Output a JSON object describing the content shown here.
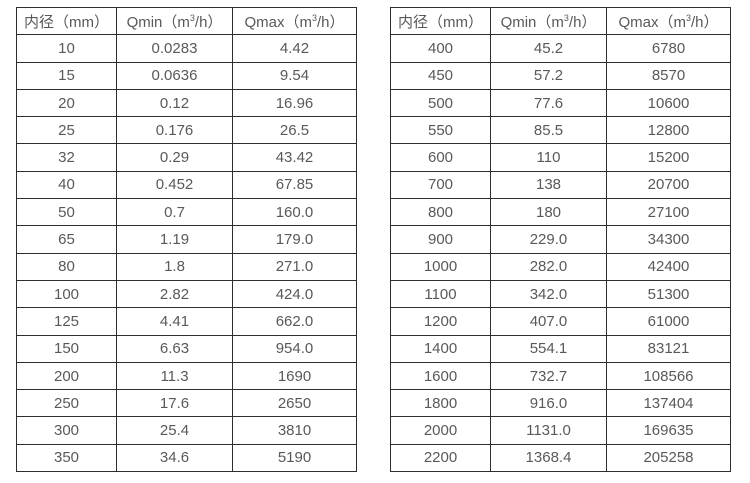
{
  "colors": {
    "background": "#ffffff",
    "border": "#2e2e2e",
    "text": "#595959"
  },
  "tables": [
    {
      "name": "flow-table-small-diameters",
      "headers": [
        {
          "text": "内径（mm）"
        },
        {
          "pre": "Qmin（m",
          "sup": "3",
          "post": "/h）"
        },
        {
          "pre": "Qmax（m",
          "sup": "3",
          "post": "/h）"
        }
      ],
      "rows": [
        [
          "10",
          "0.0283",
          "4.42"
        ],
        [
          "15",
          "0.0636",
          "9.54"
        ],
        [
          "20",
          "0.12",
          "16.96"
        ],
        [
          "25",
          "0.176",
          "26.5"
        ],
        [
          "32",
          "0.29",
          "43.42"
        ],
        [
          "40",
          "0.452",
          "67.85"
        ],
        [
          "50",
          "0.7",
          "160.0"
        ],
        [
          "65",
          "1.19",
          "179.0"
        ],
        [
          "80",
          "1.8",
          "271.0"
        ],
        [
          "100",
          "2.82",
          "424.0"
        ],
        [
          "125",
          "4.41",
          "662.0"
        ],
        [
          "150",
          "6.63",
          "954.0"
        ],
        [
          "200",
          "11.3",
          "1690"
        ],
        [
          "250",
          "17.6",
          "2650"
        ],
        [
          "300",
          "25.4",
          "3810"
        ],
        [
          "350",
          "34.6",
          "5190"
        ]
      ]
    },
    {
      "name": "flow-table-large-diameters",
      "headers": [
        {
          "text": "内径（mm）"
        },
        {
          "pre": "Qmin（m",
          "sup": "3",
          "post": "/h）"
        },
        {
          "pre": "Qmax（m",
          "sup": "3",
          "post": "/h）"
        }
      ],
      "rows": [
        [
          "400",
          "45.2",
          "6780"
        ],
        [
          "450",
          "57.2",
          "8570"
        ],
        [
          "500",
          "77.6",
          "10600"
        ],
        [
          "550",
          "85.5",
          "12800"
        ],
        [
          "600",
          "110",
          "15200"
        ],
        [
          "700",
          "138",
          "20700"
        ],
        [
          "800",
          "180",
          "27100"
        ],
        [
          "900",
          "229.0",
          "34300"
        ],
        [
          "1000",
          "282.0",
          "42400"
        ],
        [
          "1100",
          "342.0",
          "51300"
        ],
        [
          "1200",
          "407.0",
          "61000"
        ],
        [
          "1400",
          "554.1",
          "83121"
        ],
        [
          "1600",
          "732.7",
          "108566"
        ],
        [
          "1800",
          "916.0",
          "137404"
        ],
        [
          "2000",
          "1131.0",
          "169635"
        ],
        [
          "2200",
          "1368.4",
          "205258"
        ]
      ]
    }
  ]
}
